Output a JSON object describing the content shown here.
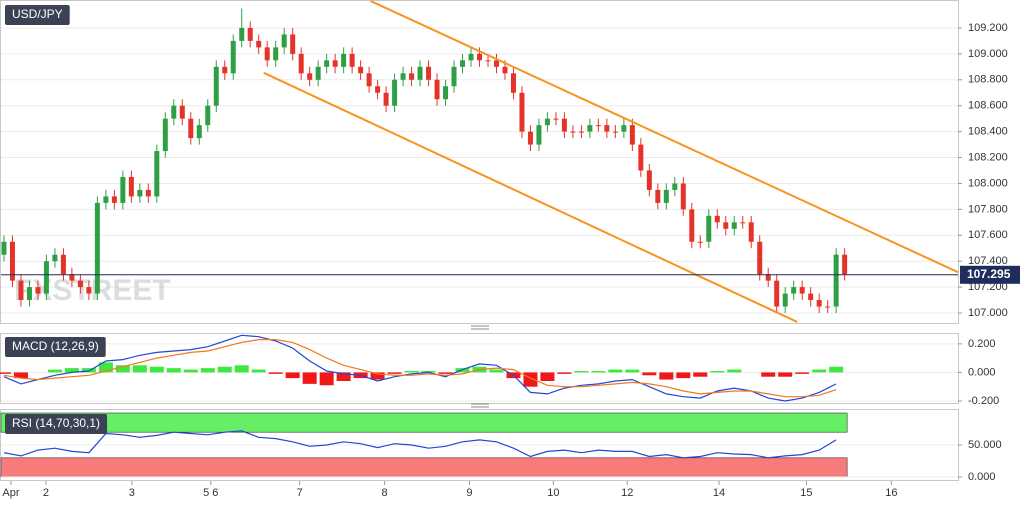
{
  "chart_data": [
    {
      "type": "candlestick",
      "title": "USD/JPY",
      "watermark": "FXSTREET",
      "x": [
        0,
        1,
        2,
        3,
        4,
        5,
        6,
        7,
        8,
        9,
        10,
        11,
        12,
        13,
        14,
        15,
        16,
        17,
        18,
        19,
        20,
        21,
        22,
        23,
        24,
        25,
        26,
        27,
        28,
        29,
        30,
        31,
        32,
        33,
        34,
        35,
        36,
        37,
        38,
        39,
        40,
        41,
        42,
        43,
        44,
        45,
        46,
        47,
        48,
        49,
        50,
        51,
        52,
        53,
        54,
        55,
        56,
        57,
        58,
        59,
        60,
        61,
        62,
        63,
        64,
        65,
        66,
        67,
        68,
        69,
        70,
        71,
        72,
        73,
        74,
        75,
        76,
        77,
        78,
        79,
        80,
        81,
        82,
        83,
        84,
        85,
        86,
        87,
        88,
        89,
        90,
        91,
        92,
        93,
        94,
        95,
        96,
        97,
        98,
        99
      ],
      "open": [
        107.45,
        107.55,
        107.25,
        107.1,
        107.2,
        107.15,
        107.4,
        107.45,
        107.3,
        107.25,
        107.2,
        107.15,
        107.85,
        107.9,
        107.85,
        108.05,
        107.9,
        107.95,
        107.9,
        108.25,
        108.5,
        108.6,
        108.5,
        108.35,
        108.45,
        108.6,
        108.9,
        108.85,
        109.1,
        109.2,
        109.1,
        109.05,
        108.95,
        109.05,
        109.15,
        109.0,
        108.85,
        108.8,
        108.9,
        108.95,
        108.9,
        109.0,
        108.9,
        108.85,
        108.75,
        108.7,
        108.6,
        108.8,
        108.85,
        108.8,
        108.9,
        108.8,
        108.65,
        108.75,
        108.9,
        108.95,
        109.0,
        108.95,
        108.95,
        108.9,
        108.85,
        108.7,
        108.4,
        108.3,
        108.45,
        108.5,
        108.5,
        108.4,
        108.4,
        108.4,
        108.45,
        108.45,
        108.4,
        108.4,
        108.45,
        108.3,
        108.1,
        107.95,
        107.85,
        107.95,
        108.0,
        107.8,
        107.55,
        107.55,
        107.75,
        107.7,
        107.65,
        107.7,
        107.7,
        107.55,
        107.3,
        107.25,
        107.05,
        107.15,
        107.2,
        107.15,
        107.1,
        107.05,
        107.05,
        107.45
      ],
      "high": [
        107.6,
        107.6,
        107.3,
        107.25,
        107.25,
        107.45,
        107.5,
        107.5,
        107.35,
        107.3,
        107.25,
        107.9,
        107.95,
        107.95,
        108.1,
        108.1,
        108.0,
        108.0,
        108.3,
        108.55,
        108.65,
        108.65,
        108.55,
        108.5,
        108.65,
        108.95,
        108.95,
        109.15,
        109.35,
        109.25,
        109.15,
        109.1,
        109.1,
        109.2,
        109.2,
        109.05,
        108.9,
        108.95,
        109.0,
        109.0,
        109.05,
        109.05,
        108.95,
        108.9,
        108.8,
        108.75,
        108.85,
        108.9,
        108.9,
        108.95,
        108.95,
        108.85,
        108.8,
        108.95,
        109.0,
        109.05,
        109.05,
        109.0,
        109.0,
        108.95,
        108.9,
        108.75,
        108.45,
        108.5,
        108.55,
        108.55,
        108.55,
        108.45,
        108.45,
        108.5,
        108.5,
        108.5,
        108.45,
        108.5,
        108.5,
        108.35,
        108.15,
        108.0,
        108.0,
        108.05,
        108.05,
        107.85,
        107.6,
        107.8,
        107.8,
        107.75,
        107.75,
        107.75,
        107.75,
        107.6,
        107.35,
        107.3,
        107.2,
        107.25,
        107.25,
        107.2,
        107.15,
        107.1,
        107.5,
        107.5
      ],
      "low": [
        107.4,
        107.2,
        107.05,
        107.05,
        107.1,
        107.1,
        107.35,
        107.25,
        107.2,
        107.15,
        107.1,
        107.1,
        107.8,
        107.8,
        107.8,
        107.85,
        107.85,
        107.85,
        107.85,
        108.2,
        108.45,
        108.45,
        108.3,
        108.3,
        108.4,
        108.55,
        108.8,
        108.8,
        109.05,
        109.05,
        109.0,
        108.9,
        108.9,
        109.0,
        108.95,
        108.8,
        108.75,
        108.75,
        108.85,
        108.85,
        108.85,
        108.85,
        108.8,
        108.7,
        108.65,
        108.55,
        108.55,
        108.75,
        108.75,
        108.75,
        108.75,
        108.6,
        108.6,
        108.7,
        108.85,
        108.9,
        108.9,
        108.9,
        108.85,
        108.8,
        108.65,
        108.35,
        108.25,
        108.25,
        108.4,
        108.45,
        108.35,
        108.35,
        108.35,
        108.35,
        108.4,
        108.35,
        108.35,
        108.35,
        108.25,
        108.05,
        107.9,
        107.8,
        107.8,
        107.9,
        107.75,
        107.5,
        107.5,
        107.5,
        107.65,
        107.6,
        107.6,
        107.65,
        107.5,
        107.25,
        107.2,
        107.0,
        107.0,
        107.1,
        107.1,
        107.05,
        107.0,
        107.0,
        107.0,
        107.25
      ],
      "close": [
        107.55,
        107.25,
        107.1,
        107.2,
        107.15,
        107.4,
        107.45,
        107.3,
        107.25,
        107.2,
        107.15,
        107.85,
        107.9,
        107.85,
        108.05,
        107.9,
        107.95,
        107.9,
        108.25,
        108.5,
        108.6,
        108.5,
        108.35,
        108.45,
        108.6,
        108.9,
        108.85,
        109.1,
        109.2,
        109.1,
        109.05,
        108.95,
        109.05,
        109.15,
        109.0,
        108.85,
        108.8,
        108.9,
        108.95,
        108.9,
        109.0,
        108.9,
        108.85,
        108.75,
        108.7,
        108.6,
        108.8,
        108.85,
        108.8,
        108.9,
        108.8,
        108.65,
        108.75,
        108.9,
        108.95,
        109.0,
        108.95,
        108.95,
        108.9,
        108.85,
        108.7,
        108.4,
        108.3,
        108.45,
        108.5,
        108.5,
        108.4,
        108.4,
        108.4,
        108.45,
        108.45,
        108.4,
        108.4,
        108.45,
        108.3,
        108.1,
        107.95,
        107.85,
        107.95,
        108.0,
        107.8,
        107.55,
        107.55,
        107.75,
        107.7,
        107.65,
        107.7,
        107.7,
        107.55,
        107.3,
        107.25,
        107.05,
        107.15,
        107.2,
        107.15,
        107.1,
        107.05,
        107.05,
        107.45,
        107.3
      ],
      "up_color": "#2ea043",
      "down_color": "#e5332a",
      "xlim": [
        -0.35,
        112.35
      ],
      "ylim": [
        106.923,
        109.408
      ],
      "yticks": [
        {
          "value": 107.0,
          "label": "107.000"
        },
        {
          "value": 107.2,
          "label": "107.200"
        },
        {
          "value": 107.4,
          "label": "107.400"
        },
        {
          "value": 107.6,
          "label": "107.600"
        },
        {
          "value": 107.8,
          "label": "107.800"
        },
        {
          "value": 108.0,
          "label": "108.000"
        },
        {
          "value": 108.2,
          "label": "108.200"
        },
        {
          "value": 108.4,
          "label": "108.400"
        },
        {
          "value": 108.6,
          "label": "108.600"
        },
        {
          "value": 108.8,
          "label": "108.800"
        },
        {
          "value": 109.0,
          "label": "109.000"
        },
        {
          "value": 109.2,
          "label": "109.200"
        }
      ],
      "grid": true,
      "last_price": 107.295,
      "last_price_color": "#1f2d5c",
      "trendlines": [
        {
          "color": "#f7931e",
          "x": [
            43.18,
            112.35
          ],
          "y": [
            109.408,
            107.315
          ]
        },
        {
          "color": "#f7931e",
          "x": [
            30.59,
            93.41
          ],
          "y": [
            108.854,
            106.931
          ]
        }
      ]
    },
    {
      "type": "combo",
      "title": "MACD (12,26,9)",
      "x": [
        0,
        2,
        4,
        6,
        8,
        10,
        12,
        14,
        16,
        18,
        20,
        22,
        24,
        26,
        28,
        30,
        32,
        34,
        36,
        38,
        40,
        42,
        44,
        46,
        48,
        50,
        52,
        54,
        56,
        58,
        60,
        62,
        64,
        66,
        68,
        70,
        72,
        74,
        76,
        78,
        80,
        82,
        84,
        86,
        88,
        90,
        92,
        94,
        96,
        98
      ],
      "histogram": {
        "up_color": "#3ee83e",
        "down_color": "#f01818",
        "values": [
          -0.01,
          -0.04,
          0.0,
          0.02,
          0.03,
          0.03,
          0.07,
          0.05,
          0.05,
          0.04,
          0.03,
          0.02,
          0.03,
          0.04,
          0.05,
          0.02,
          -0.01,
          -0.04,
          -0.08,
          -0.09,
          -0.06,
          -0.04,
          -0.05,
          -0.01,
          0.01,
          0.01,
          -0.01,
          0.03,
          0.04,
          0.02,
          -0.04,
          -0.1,
          -0.06,
          -0.01,
          0.01,
          0.01,
          0.02,
          0.02,
          -0.02,
          -0.05,
          -0.04,
          -0.03,
          0.01,
          0.02,
          0.0,
          -0.03,
          -0.03,
          -0.01,
          0.02,
          0.04
        ]
      },
      "series": [
        {
          "color": "#2246d6",
          "values": [
            -0.03,
            -0.08,
            -0.05,
            -0.02,
            0.0,
            0.01,
            0.08,
            0.09,
            0.12,
            0.14,
            0.15,
            0.16,
            0.18,
            0.22,
            0.26,
            0.25,
            0.22,
            0.17,
            0.08,
            0.01,
            -0.01,
            -0.02,
            -0.06,
            -0.03,
            -0.01,
            0.0,
            -0.03,
            0.02,
            0.06,
            0.05,
            -0.02,
            -0.14,
            -0.15,
            -0.11,
            -0.09,
            -0.08,
            -0.06,
            -0.05,
            -0.1,
            -0.15,
            -0.17,
            -0.18,
            -0.13,
            -0.11,
            -0.13,
            -0.18,
            -0.2,
            -0.18,
            -0.14,
            -0.08
          ]
        },
        {
          "color": "#f0781e",
          "values": [
            -0.02,
            -0.04,
            -0.05,
            -0.04,
            -0.03,
            -0.02,
            0.01,
            0.04,
            0.07,
            0.1,
            0.12,
            0.14,
            0.15,
            0.18,
            0.21,
            0.23,
            0.23,
            0.21,
            0.16,
            0.1,
            0.05,
            0.02,
            -0.01,
            -0.02,
            -0.02,
            -0.01,
            -0.02,
            -0.01,
            0.02,
            0.03,
            0.02,
            -0.04,
            -0.09,
            -0.1,
            -0.1,
            -0.09,
            -0.08,
            -0.07,
            -0.08,
            -0.1,
            -0.13,
            -0.15,
            -0.14,
            -0.13,
            -0.13,
            -0.15,
            -0.17,
            -0.17,
            -0.16,
            -0.12
          ]
        }
      ],
      "ylim": [
        -0.214,
        0.269
      ],
      "yticks": [
        {
          "value": -0.2,
          "label": "-0.200"
        },
        {
          "value": 0,
          "label": "0.000"
        },
        {
          "value": 0.2,
          "label": "0.200"
        }
      ],
      "grid": true
    },
    {
      "type": "line",
      "title": "RSI (14,70,30,1)",
      "x": [
        0,
        2,
        4,
        6,
        8,
        10,
        12,
        14,
        16,
        18,
        20,
        22,
        24,
        26,
        28,
        30,
        32,
        34,
        36,
        38,
        40,
        42,
        44,
        46,
        48,
        50,
        52,
        54,
        56,
        58,
        60,
        62,
        64,
        66,
        68,
        70,
        72,
        74,
        76,
        78,
        80,
        82,
        84,
        86,
        88,
        90,
        92,
        94,
        96,
        98
      ],
      "series": [
        {
          "color": "#2246d6",
          "values": [
            38,
            33,
            42,
            45,
            40,
            38,
            68,
            66,
            62,
            65,
            70,
            68,
            66,
            70,
            72,
            62,
            60,
            55,
            48,
            50,
            55,
            52,
            46,
            52,
            50,
            45,
            48,
            55,
            58,
            55,
            45,
            32,
            40,
            42,
            38,
            42,
            40,
            40,
            32,
            35,
            30,
            32,
            38,
            36,
            35,
            30,
            33,
            35,
            42,
            58
          ]
        }
      ],
      "bands": [
        {
          "from": 70,
          "to": 100,
          "color": "#66ee66"
        },
        {
          "from": 0,
          "to": 30,
          "color": "#f77b7b"
        }
      ],
      "ylim": [
        -4.7,
        104.7
      ],
      "yticks": [
        {
          "value": 0,
          "label": "0.000"
        },
        {
          "value": 50,
          "label": "50.000"
        }
      ],
      "grid": true,
      "xticks": [
        {
          "value": 0.82,
          "label": "Apr"
        },
        {
          "value": 4.94,
          "label": "2"
        },
        {
          "value": 15.06,
          "label": "3"
        },
        {
          "value": 24.35,
          "label": "5 6"
        },
        {
          "value": 34.82,
          "label": "7"
        },
        {
          "value": 44.82,
          "label": "8"
        },
        {
          "value": 54.82,
          "label": "9"
        },
        {
          "value": 64.7,
          "label": "10"
        },
        {
          "value": 73.4,
          "label": "12"
        },
        {
          "value": 84.2,
          "label": "14"
        },
        {
          "value": 94.5,
          "label": "15"
        },
        {
          "value": 104.5,
          "label": "16"
        }
      ]
    }
  ]
}
